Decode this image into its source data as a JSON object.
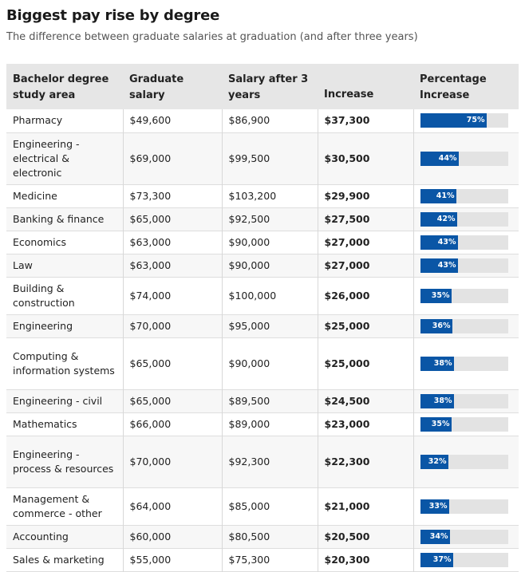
{
  "title": "Biggest pay rise by degree",
  "subtitle": "The difference between graduate salaries at graduation (and after three years)",
  "colors": {
    "bar": "#0a56a6",
    "track": "#e3e3e3",
    "header": "#e6e6e6"
  },
  "chart_data": {
    "type": "table",
    "columns": [
      "Bachelor degree study area",
      "Graduate salary",
      "Salary after 3 years",
      "Increase",
      "Percentage Increase"
    ],
    "percent_max": 100,
    "rows": [
      {
        "area": "Pharmacy",
        "graduate": "$49,600",
        "after3": "$86,900",
        "increase": "$37,300",
        "pct": 75,
        "pct_label": "75%"
      },
      {
        "area": "Engineering - electrical & electronic",
        "graduate": "$69,000",
        "after3": "$99,500",
        "increase": "$30,500",
        "pct": 44,
        "pct_label": "44%"
      },
      {
        "area": "Medicine",
        "graduate": "$73,300",
        "after3": "$103,200",
        "increase": "$29,900",
        "pct": 41,
        "pct_label": "41%"
      },
      {
        "area": "Banking & finance",
        "graduate": "$65,000",
        "after3": "$92,500",
        "increase": "$27,500",
        "pct": 42,
        "pct_label": "42%"
      },
      {
        "area": "Economics",
        "graduate": "$63,000",
        "after3": "$90,000",
        "increase": "$27,000",
        "pct": 43,
        "pct_label": "43%"
      },
      {
        "area": "Law",
        "graduate": "$63,000",
        "after3": "$90,000",
        "increase": "$27,000",
        "pct": 43,
        "pct_label": "43%"
      },
      {
        "area": "Building & construction",
        "graduate": "$74,000",
        "after3": "$100,000",
        "increase": "$26,000",
        "pct": 35,
        "pct_label": "35%"
      },
      {
        "area": "Engineering",
        "graduate": "$70,000",
        "after3": "$95,000",
        "increase": "$25,000",
        "pct": 36,
        "pct_label": "36%"
      },
      {
        "area": "Computing & information systems",
        "graduate": "$65,000",
        "after3": "$90,000",
        "increase": "$25,000",
        "pct": 38,
        "pct_label": "38%"
      },
      {
        "area": "Engineering - civil",
        "graduate": "$65,000",
        "after3": "$89,500",
        "increase": "$24,500",
        "pct": 38,
        "pct_label": "38%"
      },
      {
        "area": "Mathematics",
        "graduate": "$66,000",
        "after3": "$89,000",
        "increase": "$23,000",
        "pct": 35,
        "pct_label": "35%"
      },
      {
        "area": "Engineering - process & resources",
        "graduate": "$70,000",
        "after3": "$92,300",
        "increase": "$22,300",
        "pct": 32,
        "pct_label": "32%"
      },
      {
        "area": "Management & commerce - other",
        "graduate": "$64,000",
        "after3": "$85,000",
        "increase": "$21,000",
        "pct": 33,
        "pct_label": "33%"
      },
      {
        "area": "Accounting",
        "graduate": "$60,000",
        "after3": "$80,500",
        "increase": "$20,500",
        "pct": 34,
        "pct_label": "34%"
      },
      {
        "area": "Sales & marketing",
        "graduate": "$55,000",
        "after3": "$75,300",
        "increase": "$20,300",
        "pct": 37,
        "pct_label": "37%"
      }
    ]
  }
}
